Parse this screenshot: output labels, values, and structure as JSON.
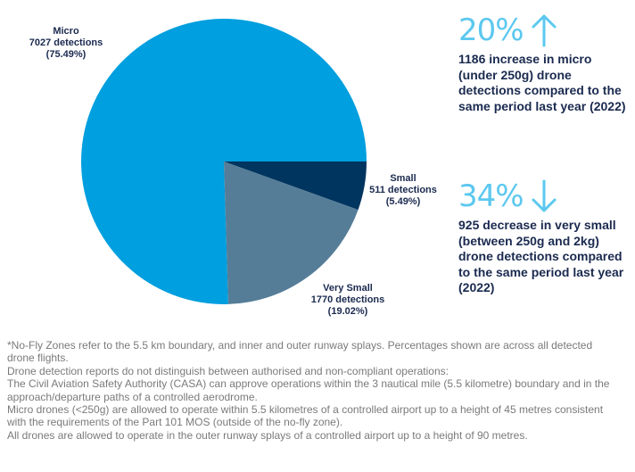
{
  "chart_data": {
    "type": "pie",
    "slices": [
      {
        "name": "Micro",
        "value": 7027,
        "detections": "7027 detections",
        "percent": "(75.49%)",
        "color": "#009fdf"
      },
      {
        "name": "Small",
        "value": 511,
        "detections": "511 detections",
        "percent": "(5.49%)",
        "color": "#00355f"
      },
      {
        "name": "Very Small",
        "value": 1770,
        "detections": "1770 detections",
        "percent": "(19.02%)",
        "color": "#557d98"
      }
    ]
  },
  "stats": [
    {
      "percent": "20%",
      "direction": "up",
      "text": "1186 increase in micro (under 250g) drone detections compared to the same period last year (2022)"
    },
    {
      "percent": "34%",
      "direction": "down",
      "text": "925 decrease in very small (between 250g and 2kg) drone detections compared to the same period last year (2022)"
    }
  ],
  "notes": [
    "*No-Fly Zones refer to the 5.5 km boundary, and inner and outer runway splays. Percentages shown are across all detected drone flights.",
    "Drone detection reports do not distinguish between authorised and non-compliant operations:",
    "The Civil Aviation Safety Authority (CASA) can approve operations within the 3 nautical mile (5.5 kilometre) boundary and in the approach/departure paths of a controlled aerodrome.",
    "Micro drones (<250g) are allowed to operate within 5.5 kilometres of a controlled airport up to a height of 45 metres consistent with the requirements of the Part 101 MOS (outside of the no-fly zone).",
    "All drones are allowed to operate in the outer runway splays of a controlled airport up to a height of 90 metres."
  ],
  "colors": {
    "accent": "#5cc8ef",
    "text_dark": "#1a2a4f",
    "note_gray": "#7a7a7a"
  }
}
